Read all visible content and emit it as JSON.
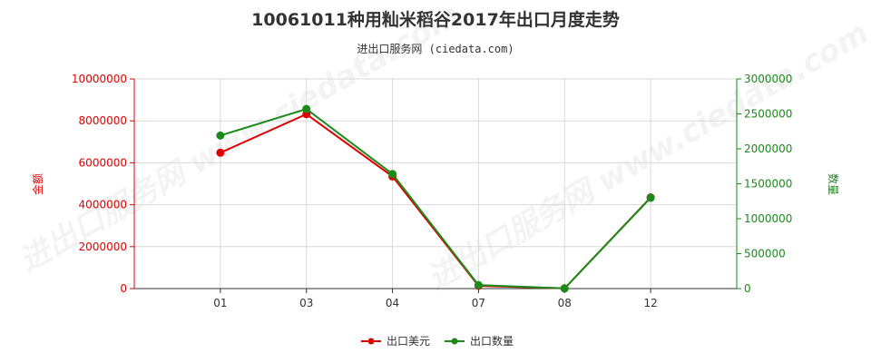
{
  "chart_data": {
    "type": "line",
    "title": "10061011种用籼米稻谷2017年出口月度走势",
    "subtitle": "进出口服务网 (ciedata.com)",
    "categories": [
      "01",
      "03",
      "04",
      "07",
      "08",
      "12"
    ],
    "y_left": {
      "label": "金额",
      "ylim": [
        0,
        10000000
      ],
      "ticks": [
        "10000000",
        "8000000",
        "6000000",
        "4000000",
        "2000000",
        "0"
      ]
    },
    "y_right": {
      "label": "数量",
      "ylim": [
        0,
        3000000
      ],
      "ticks": [
        "3000000",
        "2500000",
        "2000000",
        "1500000",
        "1000000",
        "500000",
        "0"
      ]
    },
    "series": [
      {
        "name": "出口美元",
        "axis": "left",
        "color": "#e00000",
        "values": [
          6480000,
          8320000,
          5350000,
          130000,
          10000,
          4350000
        ]
      },
      {
        "name": "出口数量",
        "axis": "right",
        "color": "#1a8a1a",
        "values": [
          2190000,
          2570000,
          1640000,
          50000,
          3000,
          1300000
        ]
      }
    ],
    "grid": true,
    "legend_position": "bottom-center"
  },
  "watermark_text": "进出口服务网 www.ciedata.com"
}
